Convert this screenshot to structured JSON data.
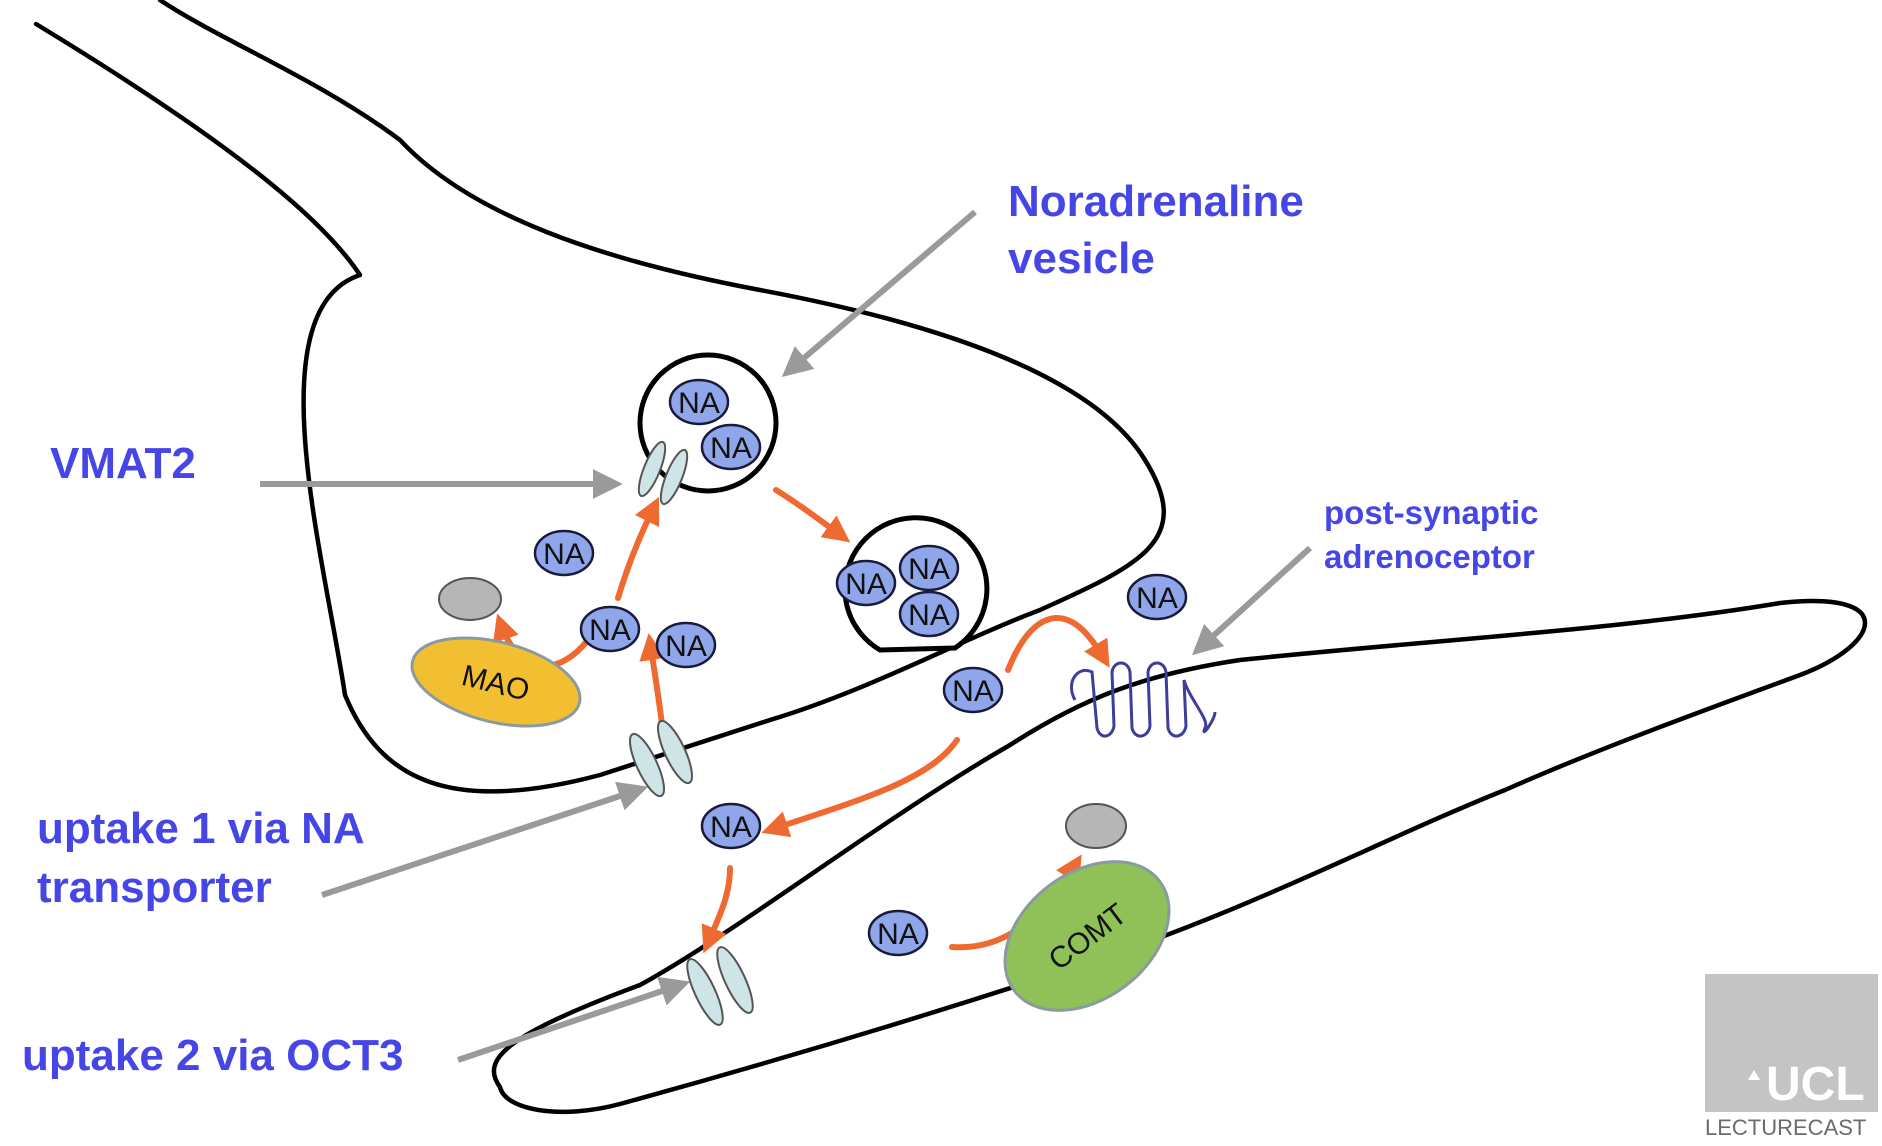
{
  "labels": {
    "noradrenaline_vesicle_line1": "Noradrenaline",
    "noradrenaline_vesicle_line2": "vesicle",
    "vmat2": "VMAT2",
    "post_synaptic_line1": "post-synaptic",
    "post_synaptic_line2": "adrenoceptor",
    "uptake1_line1": "uptake 1 via NA",
    "uptake1_line2": "transporter",
    "uptake2": "uptake 2 via OCT3"
  },
  "molecule_label": "NA",
  "enzymes": {
    "mao": "MAO",
    "comt": "COMT"
  },
  "watermark": {
    "logo_text": "UCL",
    "caption": "LECTURECAST"
  },
  "colors": {
    "label_blue": "#4646e6",
    "na_fill": "#8fa6ea",
    "mao_fill": "#f2bf33",
    "comt_fill": "#8fc158",
    "arrow_orange": "#ef6a30",
    "arrow_grey": "#9a9a9a",
    "transporter_fill": "#cfe4e6"
  }
}
